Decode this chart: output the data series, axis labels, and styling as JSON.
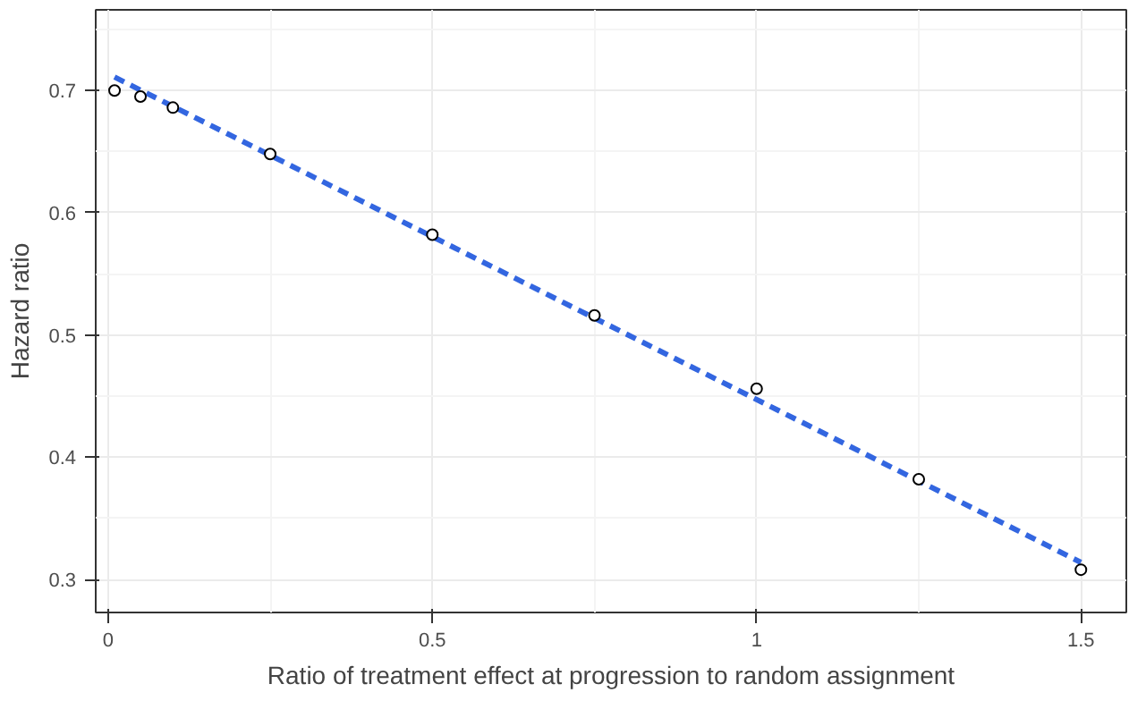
{
  "chart_data": {
    "type": "scatter",
    "xlabel": "Ratio of treatment effect at progression to random assignment",
    "ylabel": "Hazard ratio",
    "x": [
      0.01,
      0.05,
      0.1,
      0.25,
      0.5,
      0.75,
      1.0,
      1.25,
      1.5
    ],
    "series": [
      {
        "color": "#000000",
        "marker": "circle",
        "values": [
          0.7,
          0.695,
          0.686,
          0.648,
          0.582,
          0.516,
          0.456,
          0.382,
          0.308
        ]
      },
      {
        "type": "line",
        "color": "#3366e0",
        "line_style": "dashed",
        "x": [
          0.01,
          1.5
        ],
        "values": [
          0.711,
          0.314
        ]
      }
    ],
    "xlim": [
      -0.019,
      1.57
    ],
    "ylim": [
      0.273,
      0.766
    ],
    "xticks": [
      0,
      0.5,
      1,
      1.5
    ],
    "yticks": [
      0.3,
      0.4,
      0.5,
      0.6,
      0.7
    ],
    "grid": true
  }
}
